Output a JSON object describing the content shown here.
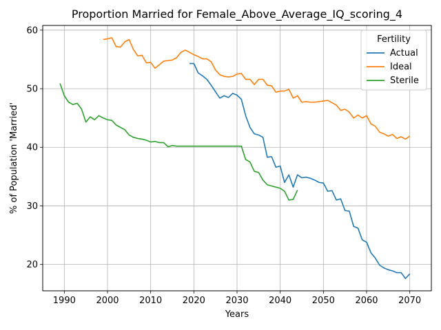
{
  "chart_data": {
    "type": "line",
    "title": "Proportion Married for Female_Above_Average_IQ_scoring_4",
    "xlabel": "Years",
    "ylabel": "% of Population 'Married'",
    "xlim": [
      1985,
      2075
    ],
    "ylim": [
      15.5,
      60.8
    ],
    "xticks": [
      1990,
      2000,
      2010,
      2020,
      2030,
      2040,
      2050,
      2060,
      2070
    ],
    "yticks": [
      20,
      30,
      40,
      50,
      60
    ],
    "grid": true,
    "legend": {
      "title": "Fertility",
      "position": "top-right"
    },
    "series": [
      {
        "name": "Actual",
        "color": "#1f77b4",
        "x": [
          2019,
          2020,
          2021,
          2022,
          2023,
          2024,
          2025,
          2026,
          2027,
          2028,
          2029,
          2030,
          2031,
          2032,
          2033,
          2034,
          2035,
          2036,
          2037,
          2038,
          2039,
          2040,
          2041,
          2042,
          2043,
          2044,
          2045,
          2046,
          2047,
          2048,
          2049,
          2050,
          2051,
          2052,
          2053,
          2054,
          2055,
          2056,
          2057,
          2058,
          2059,
          2060,
          2061,
          2062,
          2063,
          2064,
          2065,
          2066,
          2067,
          2068,
          2069,
          2070
        ],
        "y": [
          54.3,
          54.3,
          52.7,
          52.2,
          51.6,
          50.6,
          49.5,
          48.4,
          48.8,
          48.5,
          49.2,
          48.9,
          48.2,
          45.4,
          43.4,
          42.3,
          42.1,
          41.7,
          38.3,
          38.4,
          36.6,
          36.8,
          34.0,
          35.3,
          33.2,
          35.3,
          34.8,
          34.9,
          34.7,
          34.4,
          34.0,
          33.9,
          32.5,
          32.6,
          31.0,
          31.2,
          29.2,
          29.1,
          26.5,
          26.2,
          24.2,
          23.8,
          22.0,
          21.1,
          19.9,
          19.4,
          19.1,
          18.9,
          18.6,
          18.6,
          17.6,
          18.4
        ]
      },
      {
        "name": "Ideal",
        "color": "#ff7f0e",
        "x": [
          1999,
          2000,
          2001,
          2002,
          2003,
          2004,
          2005,
          2006,
          2007,
          2008,
          2009,
          2010,
          2011,
          2012,
          2013,
          2014,
          2015,
          2016,
          2017,
          2018,
          2019,
          2020,
          2021,
          2022,
          2023,
          2024,
          2025,
          2026,
          2027,
          2028,
          2029,
          2030,
          2031,
          2032,
          2033,
          2034,
          2035,
          2036,
          2037,
          2038,
          2039,
          2040,
          2041,
          2042,
          2043,
          2044,
          2045,
          2046,
          2047,
          2048,
          2049,
          2050,
          2051,
          2052,
          2053,
          2054,
          2055,
          2056,
          2057,
          2058,
          2059,
          2060,
          2061,
          2062,
          2063,
          2064,
          2065,
          2066,
          2067,
          2068,
          2069,
          2070
        ],
        "y": [
          58.4,
          58.5,
          58.7,
          57.2,
          57.1,
          58.0,
          58.4,
          56.7,
          55.6,
          55.7,
          54.4,
          54.5,
          53.5,
          54.1,
          54.7,
          54.8,
          54.9,
          55.3,
          56.2,
          56.6,
          56.2,
          55.8,
          55.5,
          55.1,
          55.1,
          54.6,
          53.2,
          52.4,
          52.1,
          52.0,
          52.1,
          52.5,
          52.6,
          51.6,
          51.6,
          50.7,
          51.6,
          51.6,
          50.6,
          50.5,
          49.4,
          49.6,
          49.6,
          49.9,
          48.4,
          48.8,
          47.7,
          47.8,
          47.7,
          47.7,
          47.8,
          47.9,
          48.0,
          47.6,
          47.2,
          46.3,
          46.5,
          46.0,
          45.0,
          45.5,
          45.0,
          45.4,
          44.0,
          43.6,
          42.6,
          42.3,
          41.9,
          42.2,
          41.5,
          41.8,
          41.4,
          41.9
        ]
      },
      {
        "name": "Sterile",
        "color": "#2ca02c",
        "x": [
          1989,
          1990,
          1991,
          1992,
          1993,
          1994,
          1995,
          1996,
          1997,
          1998,
          1999,
          2000,
          2001,
          2002,
          2003,
          2004,
          2005,
          2006,
          2007,
          2008,
          2009,
          2010,
          2011,
          2012,
          2013,
          2014,
          2015,
          2016,
          2017,
          2018,
          2019,
          2020,
          2021,
          2022,
          2023,
          2024,
          2025,
          2026,
          2027,
          2028,
          2029,
          2030,
          2031,
          2032,
          2033,
          2034,
          2035,
          2036,
          2037,
          2038,
          2039,
          2040,
          2041,
          2042,
          2043,
          2044
        ],
        "y": [
          50.9,
          48.8,
          47.7,
          47.3,
          47.5,
          46.5,
          44.3,
          45.2,
          44.7,
          45.4,
          45.0,
          44.7,
          44.6,
          43.8,
          43.4,
          43.0,
          42.1,
          41.7,
          41.5,
          41.4,
          41.2,
          40.9,
          41.0,
          40.8,
          40.8,
          40.1,
          40.3,
          40.2,
          40.2,
          40.2,
          40.2,
          40.2,
          40.2,
          40.2,
          40.2,
          40.2,
          40.2,
          40.2,
          40.2,
          40.2,
          40.2,
          40.2,
          40.2,
          37.9,
          37.5,
          35.9,
          35.7,
          34.4,
          33.6,
          33.4,
          33.2,
          33.0,
          32.5,
          31.0,
          31.1,
          32.7
        ]
      }
    ]
  }
}
